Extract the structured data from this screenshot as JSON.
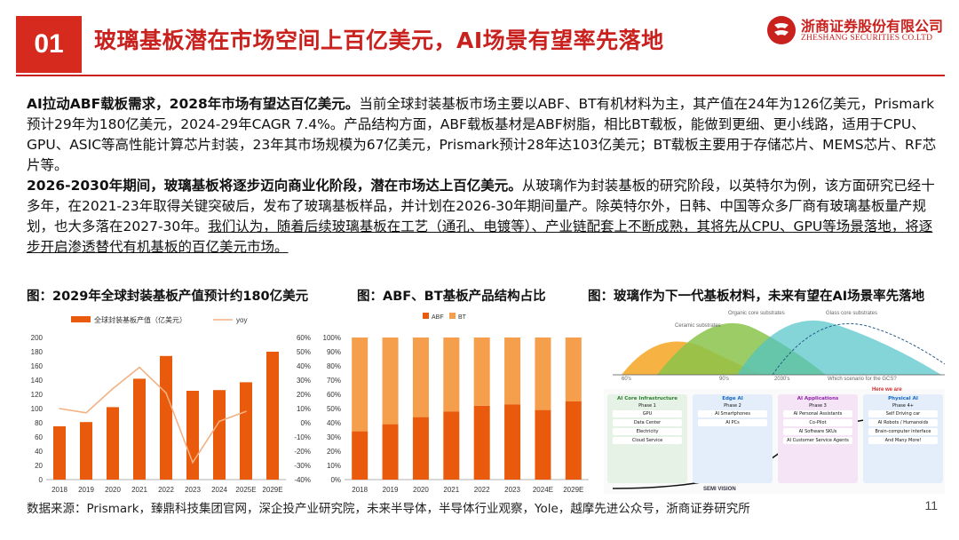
{
  "header": {
    "section_num": "01",
    "title": "玻璃基板潜在市场空间上百亿美元，AI场景有望率先落地",
    "logo_cn": "浙商证券股份有限公司",
    "logo_en": "ZHESHANG SECURITIES CO.LTD"
  },
  "body": {
    "p1_bold": "AI拉动ABF载板需求，2028年市场有望达百亿美元。",
    "p1_text": "当前全球封装基板市场主要以ABF、BT有机材料为主，其产值在24年为126亿美元，Prismark预计29年为180亿美元，2024-29年CAGR 7.4%。产品结构方面，ABF载板基材是ABF树脂，相比BT载板，能做到更细、更小线路，适用于CPU、GPU、ASIC等高性能计算芯片封装，23年其市场规模为67亿美元，Prismark预计28年达103亿美元；BT载板主要用于存储芯片、MEMS芯片、RF芯片等。",
    "p2_bold": "2026-2030年期间，玻璃基板将逐步迈向商业化阶段，潜在市场达上百亿美元。",
    "p2_text": "从玻璃作为封装基板的研究阶段，以英特尔为例，该方面研究已经十多年，在2021-23年取得关键突破后，发布了玻璃基板样品，并计划在2026-30年期间量产。除英特尔外，日韩、中国等众多厂商有玻璃基板量产规划，也大多落在2027-30年。",
    "p2_underline": "我们认为，随着后续玻璃基板在工艺（通孔、电镀等）、产业链配套上不断成熟，其将先从CPU、GPU等场景落地，将逐步开启渗透替代有机基板的百亿美元市场。"
  },
  "figures": {
    "fig1_title": "图：2029年全球封装基板产值预计约180亿美元",
    "fig2_title": "图：ABF、BT基板产品结构占比",
    "fig3_title": "图：玻璃作为下一代基板材料，未来有望在AI场景率先落地"
  },
  "chart_data": [
    {
      "type": "bar",
      "categories": [
        "2018",
        "2019",
        "2020",
        "2021",
        "2022",
        "2023",
        "2024",
        "2025E",
        "2029E"
      ],
      "series": [
        {
          "name": "全球封装基板产值（亿美元）",
          "type": "bar",
          "values": [
            75,
            81,
            102,
            142,
            174,
            125,
            126,
            137,
            180
          ],
          "color": "#ea5a0c"
        },
        {
          "name": "yoy",
          "type": "line",
          "axis": "right",
          "values": [
            10,
            7,
            24,
            39,
            21,
            -28,
            1,
            8,
            null
          ],
          "color": "#f2b183"
        }
      ],
      "ylim": [
        0,
        200
      ],
      "y_ticks": [
        "0",
        "20",
        "40",
        "60",
        "80",
        "100",
        "120",
        "140",
        "160",
        "180",
        "200"
      ],
      "y2lim": [
        -40,
        60
      ],
      "y2_ticks": [
        "-40%",
        "-30%",
        "-20%",
        "-10%",
        "0%",
        "10%",
        "20%",
        "30%",
        "40%",
        "50%",
        "60%"
      ],
      "grid": false,
      "legend": "top"
    },
    {
      "type": "bar",
      "stacked": true,
      "categories": [
        "2018",
        "2019",
        "2020",
        "2021",
        "2022",
        "2023",
        "2024E",
        "2029E"
      ],
      "series": [
        {
          "name": "ABF",
          "values": [
            34,
            39,
            44,
            48,
            52,
            53,
            49,
            55
          ],
          "color": "#ea5a0c"
        },
        {
          "name": "BT",
          "values": [
            66,
            61,
            56,
            52,
            48,
            47,
            51,
            45
          ],
          "color": "#f59e4c"
        }
      ],
      "ylim": [
        0,
        100
      ],
      "y_ticks": [
        "0%",
        "10%",
        "20%",
        "30%",
        "40%",
        "50%",
        "60%",
        "70%",
        "80%",
        "90%",
        "100%"
      ],
      "grid": false,
      "legend": "top-left"
    }
  ],
  "diagram": {
    "top_labels": [
      "Ceramic substrates",
      "Organic core substrates",
      "Glass core substrates"
    ],
    "top_axis": [
      "60's",
      "90's",
      "2030's",
      "Which scenario for the GCS?"
    ],
    "phases": [
      {
        "head": "AI Core Infrastructure",
        "sub": "Phase 1",
        "items": [
          "GPU",
          "Data Center",
          "Electricity",
          "Cloud Service"
        ],
        "bg": "#e6f2e6",
        "hc": "#2e7d32"
      },
      {
        "head": "Edge AI",
        "sub": "Phase 2",
        "items": [
          "AI Smartphones",
          "AI PCs"
        ],
        "bg": "#e3eefa",
        "hc": "#1565c0"
      },
      {
        "head": "AI Applications",
        "sub": "Phase 3",
        "items": [
          "AI Personal Assistants",
          "Co-Pilot",
          "AI Software SKUs",
          "AI Customer Service Agents"
        ],
        "bg": "#f4e4f6",
        "hc": "#8e24aa"
      },
      {
        "head": "Physical AI",
        "sub": "Phase 4+",
        "items": [
          "Self Driving car",
          "AI Robots / Humanoids",
          "Brain-computer interface",
          "And Many More!"
        ],
        "bg": "#e3eefa",
        "hc": "#1565c0"
      }
    ],
    "here_label": "Here we are",
    "sv_label": "SEMI VISION"
  },
  "footer": {
    "source": "数据来源：Prismark，臻鼎科技集团官网，深企投产业研究院，未来半导体，半导体行业观察，Yole，越摩先进公众号，浙商证券研究所",
    "page": "11"
  }
}
